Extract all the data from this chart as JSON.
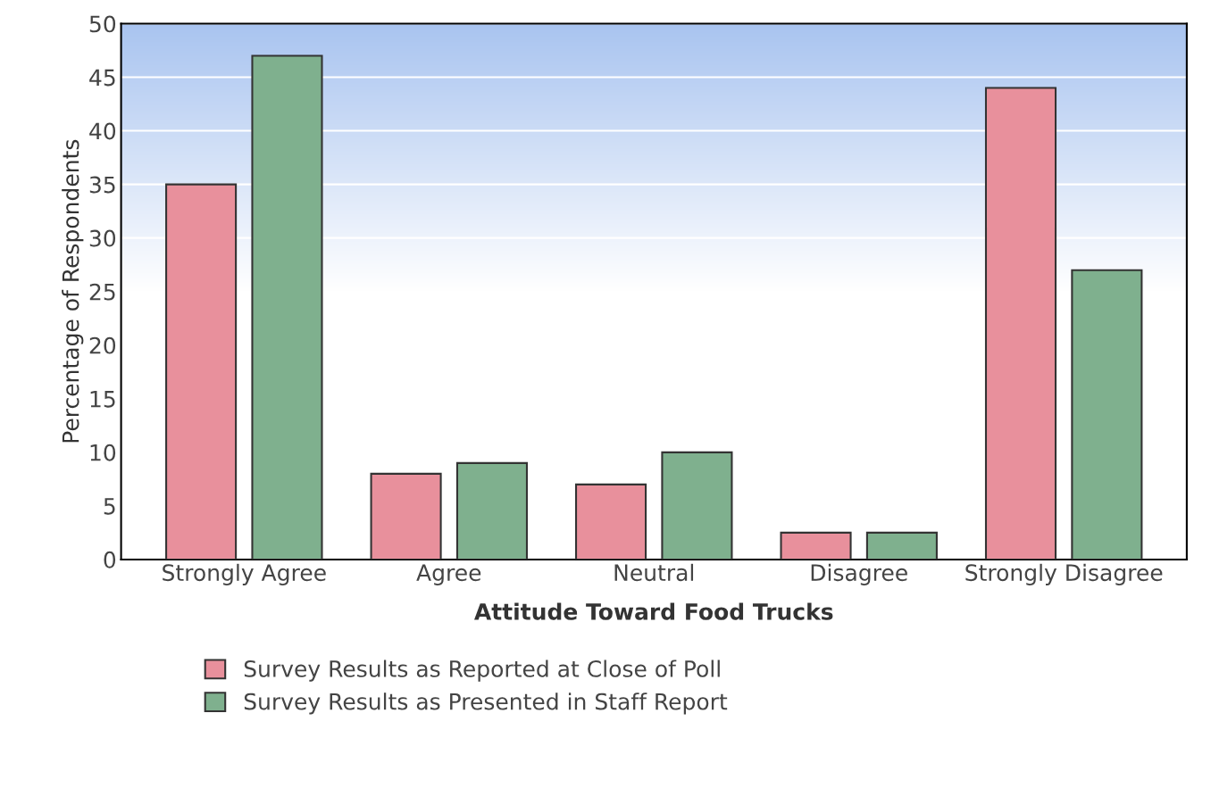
{
  "chart_data": {
    "type": "bar",
    "xlabel": "Attitude Toward Food Trucks",
    "ylabel": "Percentage of Respondents",
    "categories": [
      "Strongly Agree",
      "Agree",
      "Neutral",
      "Disagree",
      "Strongly Disagree"
    ],
    "series": [
      {
        "name": "Survey Results as Reported at Close of Poll",
        "color": "#e8909c",
        "values": [
          35,
          8,
          7,
          2.5,
          44
        ]
      },
      {
        "name": "Survey Results as Presented in Staff Report",
        "color": "#7fb08e",
        "values": [
          47,
          9,
          10,
          2.5,
          27
        ]
      }
    ],
    "ylim": [
      0,
      50
    ],
    "yticks": [
      0,
      5,
      10,
      15,
      20,
      25,
      30,
      35,
      40,
      45,
      50
    ],
    "grid": "y",
    "legend": "bottom left"
  }
}
